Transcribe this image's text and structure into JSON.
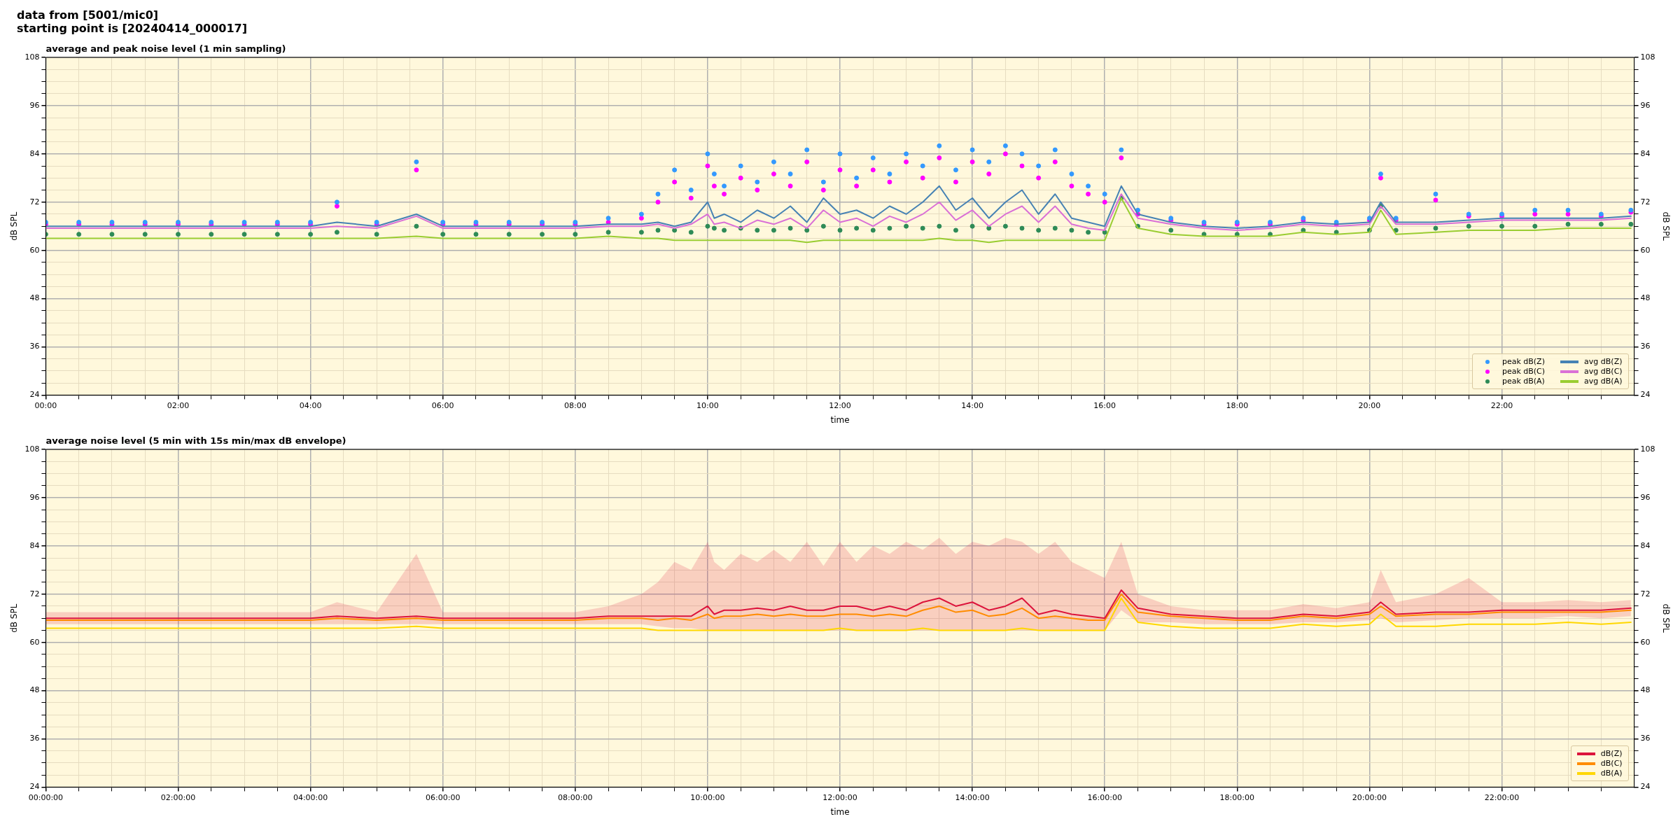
{
  "chart_data": [
    {
      "type": "line",
      "title": "average and peak noise level (1 min sampling)",
      "annotations": [
        "data from [5001/mic0]",
        "starting point is [20240414_000017]"
      ],
      "xlabel": "time",
      "ylabel": "dB SPL",
      "y2label": "dB SPL",
      "x": [
        0,
        0.5,
        1,
        1.5,
        2,
        2.5,
        3,
        3.5,
        4,
        4.4,
        5,
        5.6,
        6,
        6.5,
        7,
        7.5,
        8,
        8.5,
        9,
        9.25,
        9.5,
        9.75,
        10,
        10.1,
        10.25,
        10.5,
        10.75,
        11,
        11.25,
        11.5,
        11.75,
        12,
        12.25,
        12.5,
        12.75,
        13,
        13.25,
        13.5,
        13.75,
        14,
        14.25,
        14.5,
        14.75,
        15,
        15.25,
        15.5,
        15.75,
        16,
        16.25,
        16.5,
        17,
        17.5,
        18,
        18.5,
        19,
        19.5,
        20,
        20.17,
        20.4,
        21,
        21.5,
        22,
        22.5,
        23,
        23.5,
        23.95
      ],
      "xlim": [
        0,
        24
      ],
      "xticks": [
        {
          "value": 0,
          "label": "00:00"
        },
        {
          "value": 0.5,
          "label": null
        },
        {
          "value": 1,
          "label": null
        },
        {
          "value": 1.5,
          "label": null
        },
        {
          "value": 2,
          "label": "02:00"
        },
        {
          "value": 2.5,
          "label": null
        },
        {
          "value": 3,
          "label": null
        },
        {
          "value": 3.5,
          "label": null
        },
        {
          "value": 4,
          "label": "04:00"
        },
        {
          "value": 4.5,
          "label": null
        },
        {
          "value": 5,
          "label": null
        },
        {
          "value": 5.5,
          "label": null
        },
        {
          "value": 6,
          "label": "06:00"
        },
        {
          "value": 6.5,
          "label": null
        },
        {
          "value": 7,
          "label": null
        },
        {
          "value": 7.5,
          "label": null
        },
        {
          "value": 8,
          "label": "08:00"
        },
        {
          "value": 8.5,
          "label": null
        },
        {
          "value": 9,
          "label": null
        },
        {
          "value": 9.5,
          "label": null
        },
        {
          "value": 10,
          "label": "10:00"
        },
        {
          "value": 10.5,
          "label": null
        },
        {
          "value": 11,
          "label": null
        },
        {
          "value": 11.5,
          "label": null
        },
        {
          "value": 12,
          "label": "12:00"
        },
        {
          "value": 12.5,
          "label": null
        },
        {
          "value": 13,
          "label": null
        },
        {
          "value": 13.5,
          "label": null
        },
        {
          "value": 14,
          "label": "14:00"
        },
        {
          "value": 14.5,
          "label": null
        },
        {
          "value": 15,
          "label": null
        },
        {
          "value": 15.5,
          "label": null
        },
        {
          "value": 16,
          "label": "16:00"
        },
        {
          "value": 16.5,
          "label": null
        },
        {
          "value": 17,
          "label": null
        },
        {
          "value": 17.5,
          "label": null
        },
        {
          "value": 18,
          "label": "18:00"
        },
        {
          "value": 18.5,
          "label": null
        },
        {
          "value": 19,
          "label": null
        },
        {
          "value": 19.5,
          "label": null
        },
        {
          "value": 20,
          "label": "20:00"
        },
        {
          "value": 20.5,
          "label": null
        },
        {
          "value": 21,
          "label": null
        },
        {
          "value": 21.5,
          "label": null
        },
        {
          "value": 22,
          "label": "22:00"
        },
        {
          "value": 22.5,
          "label": null
        },
        {
          "value": 23,
          "label": null
        },
        {
          "value": 23.5,
          "label": null
        }
      ],
      "ylim": [
        24,
        108
      ],
      "yticks": [
        24,
        {
          "value": 27,
          "label": null
        },
        {
          "value": 30,
          "label": null
        },
        {
          "value": 33,
          "label": null
        },
        36,
        {
          "value": 39,
          "label": null
        },
        {
          "value": 42,
          "label": null
        },
        {
          "value": 45,
          "label": null
        },
        48,
        {
          "value": 51,
          "label": null
        },
        {
          "value": 54,
          "label": null
        },
        {
          "value": 57,
          "label": null
        },
        60,
        {
          "value": 63,
          "label": null
        },
        {
          "value": 66,
          "label": null
        },
        {
          "value": 69,
          "label": null
        },
        72,
        {
          "value": 75,
          "label": null
        },
        {
          "value": 78,
          "label": null
        },
        {
          "value": 81,
          "label": null
        },
        84,
        {
          "value": 87,
          "label": null
        },
        {
          "value": 90,
          "label": null
        },
        {
          "value": 93,
          "label": null
        },
        96,
        {
          "value": 99,
          "label": null
        },
        {
          "value": 102,
          "label": null
        },
        {
          "value": 105,
          "label": null
        },
        108
      ],
      "y2lim": [
        24,
        108
      ],
      "y2ticks": [
        24,
        {
          "value": 27,
          "label": null
        },
        {
          "value": 30,
          "label": null
        },
        {
          "value": 33,
          "label": null
        },
        36,
        {
          "value": 39,
          "label": null
        },
        {
          "value": 42,
          "label": null
        },
        {
          "value": 45,
          "label": null
        },
        48,
        {
          "value": 51,
          "label": null
        },
        {
          "value": 54,
          "label": null
        },
        {
          "value": 57,
          "label": null
        },
        60,
        {
          "value": 63,
          "label": null
        },
        {
          "value": 66,
          "label": null
        },
        {
          "value": 69,
          "label": null
        },
        72,
        {
          "value": 75,
          "label": null
        },
        {
          "value": 78,
          "label": null
        },
        {
          "value": 81,
          "label": null
        },
        84,
        {
          "value": 87,
          "label": null
        },
        {
          "value": 90,
          "label": null
        },
        {
          "value": 93,
          "label": null
        },
        96,
        {
          "value": 99,
          "label": null
        },
        {
          "value": 102,
          "label": null
        },
        {
          "value": 105,
          "label": null
        },
        108
      ],
      "grid": true,
      "legend": "bottom right",
      "series": [
        {
          "name": "peak dB(Z)",
          "type": "scatter",
          "marker": "circle",
          "color": "#3399ff",
          "values": [
            67,
            67,
            67,
            67,
            67,
            67,
            67,
            67,
            67,
            72,
            67,
            82,
            67,
            67,
            67,
            67,
            67,
            68,
            69,
            74,
            80,
            75,
            84,
            79,
            76,
            81,
            77,
            82,
            79,
            85,
            77,
            84,
            78,
            83,
            79,
            84,
            81,
            86,
            80,
            85,
            82,
            86,
            84,
            81,
            85,
            79,
            76,
            74,
            85,
            70,
            68,
            67,
            67,
            67,
            68,
            67,
            68,
            79,
            68,
            74,
            69,
            69,
            70,
            70,
            69,
            70
          ]
        },
        {
          "name": "peak dB(C)",
          "type": "scatter",
          "marker": "circle",
          "color": "#ff00ff",
          "values": [
            66.5,
            66.5,
            66.5,
            66.5,
            66.5,
            66.5,
            66.5,
            66.5,
            66.5,
            71,
            66.5,
            80,
            66.5,
            66.5,
            66.5,
            66.5,
            66.5,
            67,
            68,
            72,
            77,
            73,
            81,
            76,
            74,
            78,
            75,
            79,
            76,
            82,
            75,
            80,
            76,
            80,
            77,
            82,
            78,
            83,
            77,
            82,
            79,
            84,
            81,
            78,
            82,
            76,
            74,
            72,
            83,
            69,
            67.5,
            66.5,
            66.5,
            66.5,
            67.5,
            66.5,
            67.5,
            78,
            67.5,
            72.5,
            68.5,
            68.5,
            69,
            69,
            68.5,
            69.5
          ]
        },
        {
          "name": "peak dB(A)",
          "type": "scatter",
          "marker": "circle",
          "color": "#2e8b57",
          "values": [
            64,
            64,
            64,
            64,
            64,
            64,
            64,
            64,
            64,
            64.5,
            64,
            66,
            64,
            64,
            64,
            64,
            64,
            64.5,
            64.5,
            65,
            65,
            64.5,
            66,
            65.5,
            65,
            65.5,
            65,
            65,
            65.5,
            65,
            66,
            65,
            65.5,
            65,
            65.5,
            66,
            65.5,
            66,
            65,
            66,
            65.5,
            66,
            65.5,
            65,
            65.5,
            65,
            64.5,
            64.5,
            73,
            66,
            65,
            64,
            64,
            64,
            65,
            64.5,
            65,
            71,
            65,
            65.5,
            66,
            66,
            66,
            66.5,
            66.5,
            66.5
          ]
        },
        {
          "name": "avg dB(Z)",
          "type": "line",
          "color": "#4682b4",
          "values": [
            66,
            66,
            66,
            66,
            66,
            66,
            66,
            66,
            66,
            67,
            66,
            69,
            66,
            66,
            66,
            66,
            66,
            66.5,
            66.5,
            67,
            66,
            67,
            72,
            68,
            69,
            67,
            70,
            68,
            71,
            67,
            73,
            69,
            70,
            68,
            71,
            69,
            72,
            76,
            70,
            73,
            68,
            72,
            75,
            69,
            74,
            68,
            67,
            66,
            76,
            69,
            67,
            66,
            65.5,
            66,
            67,
            66.5,
            67,
            72,
            67,
            67,
            67.5,
            68,
            68,
            68,
            68,
            68.5
          ]
        },
        {
          "name": "avg dB(C)",
          "type": "line",
          "color": "#da70d6",
          "values": [
            65.5,
            65.5,
            65.5,
            65.5,
            65.5,
            65.5,
            65.5,
            65.5,
            65.5,
            66,
            65.5,
            68.5,
            65.5,
            65.5,
            65.5,
            65.5,
            65.5,
            66,
            66,
            66.5,
            65.5,
            66.5,
            69,
            66.5,
            67,
            65.5,
            67.5,
            66.5,
            68,
            65.5,
            70,
            67,
            68,
            66,
            68.5,
            67,
            69,
            72,
            67.5,
            70,
            66,
            69,
            71,
            67,
            71,
            66.5,
            65.5,
            65,
            74,
            68,
            66.5,
            65.5,
            65,
            65.5,
            66.5,
            66,
            66.5,
            71,
            66.5,
            66.5,
            67,
            67.5,
            67.5,
            67.5,
            67.5,
            68
          ]
        },
        {
          "name": "avg dB(A)",
          "type": "line",
          "color": "#9acd32",
          "values": [
            63,
            63,
            63,
            63,
            63,
            63,
            63,
            63,
            63,
            63,
            63,
            63.5,
            63,
            63,
            63,
            63,
            63,
            63.5,
            63,
            63,
            62.5,
            62.5,
            62.5,
            62.5,
            62.5,
            62.5,
            62.5,
            62.5,
            62.5,
            62,
            62.5,
            62.5,
            62.5,
            62.5,
            62.5,
            62.5,
            62.5,
            63,
            62.5,
            62.5,
            62,
            62.5,
            62.5,
            62.5,
            62.5,
            62.5,
            62.5,
            62.5,
            73,
            65.5,
            64,
            63.5,
            63.5,
            63.5,
            64.5,
            64,
            64.5,
            70,
            64,
            64.5,
            65,
            65,
            65,
            65.5,
            65.5,
            65.5
          ]
        }
      ]
    },
    {
      "type": "line",
      "title": "average noise level (5 min with 15s min/max dB envelope)",
      "xlabel": "time",
      "ylabel": "dB SPL",
      "y2label": "dB SPL",
      "x": [
        0,
        0.5,
        1,
        1.5,
        2,
        2.5,
        3,
        3.5,
        4,
        4.4,
        5,
        5.6,
        6,
        6.5,
        7,
        7.5,
        8,
        8.5,
        9,
        9.25,
        9.5,
        9.75,
        10,
        10.1,
        10.25,
        10.5,
        10.75,
        11,
        11.25,
        11.5,
        11.75,
        12,
        12.25,
        12.5,
        12.75,
        13,
        13.25,
        13.5,
        13.75,
        14,
        14.25,
        14.5,
        14.75,
        15,
        15.25,
        15.5,
        15.75,
        16,
        16.25,
        16.5,
        17,
        17.5,
        18,
        18.5,
        19,
        19.5,
        20,
        20.17,
        20.4,
        21,
        21.5,
        22,
        22.5,
        23,
        23.5,
        23.95
      ],
      "xlim": [
        0,
        24
      ],
      "xticks": [
        {
          "value": 0,
          "label": "00:00:00"
        },
        {
          "value": 0.5,
          "label": null
        },
        {
          "value": 1,
          "label": null
        },
        {
          "value": 1.5,
          "label": null
        },
        {
          "value": 2,
          "label": "02:00:00"
        },
        {
          "value": 2.5,
          "label": null
        },
        {
          "value": 3,
          "label": null
        },
        {
          "value": 3.5,
          "label": null
        },
        {
          "value": 4,
          "label": "04:00:00"
        },
        {
          "value": 4.5,
          "label": null
        },
        {
          "value": 5,
          "label": null
        },
        {
          "value": 5.5,
          "label": null
        },
        {
          "value": 6,
          "label": "06:00:00"
        },
        {
          "value": 6.5,
          "label": null
        },
        {
          "value": 7,
          "label": null
        },
        {
          "value": 7.5,
          "label": null
        },
        {
          "value": 8,
          "label": "08:00:00"
        },
        {
          "value": 8.5,
          "label": null
        },
        {
          "value": 9,
          "label": null
        },
        {
          "value": 9.5,
          "label": null
        },
        {
          "value": 10,
          "label": "10:00:00"
        },
        {
          "value": 10.5,
          "label": null
        },
        {
          "value": 11,
          "label": null
        },
        {
          "value": 11.5,
          "label": null
        },
        {
          "value": 12,
          "label": "12:00:00"
        },
        {
          "value": 12.5,
          "label": null
        },
        {
          "value": 13,
          "label": null
        },
        {
          "value": 13.5,
          "label": null
        },
        {
          "value": 14,
          "label": "14:00:00"
        },
        {
          "value": 14.5,
          "label": null
        },
        {
          "value": 15,
          "label": null
        },
        {
          "value": 15.5,
          "label": null
        },
        {
          "value": 16,
          "label": "16:00:00"
        },
        {
          "value": 16.5,
          "label": null
        },
        {
          "value": 17,
          "label": null
        },
        {
          "value": 17.5,
          "label": null
        },
        {
          "value": 18,
          "label": "18:00:00"
        },
        {
          "value": 18.5,
          "label": null
        },
        {
          "value": 19,
          "label": null
        },
        {
          "value": 19.5,
          "label": null
        },
        {
          "value": 20,
          "label": "20:00:00"
        },
        {
          "value": 20.5,
          "label": null
        },
        {
          "value": 21,
          "label": null
        },
        {
          "value": 21.5,
          "label": null
        },
        {
          "value": 22,
          "label": "22:00:00"
        },
        {
          "value": 22.5,
          "label": null
        },
        {
          "value": 23,
          "label": null
        },
        {
          "value": 23.5,
          "label": null
        }
      ],
      "ylim": [
        24,
        108
      ],
      "yticks": [
        24,
        {
          "value": 27,
          "label": null
        },
        {
          "value": 30,
          "label": null
        },
        {
          "value": 33,
          "label": null
        },
        36,
        {
          "value": 39,
          "label": null
        },
        {
          "value": 42,
          "label": null
        },
        {
          "value": 45,
          "label": null
        },
        48,
        {
          "value": 51,
          "label": null
        },
        {
          "value": 54,
          "label": null
        },
        {
          "value": 57,
          "label": null
        },
        60,
        {
          "value": 63,
          "label": null
        },
        {
          "value": 66,
          "label": null
        },
        {
          "value": 69,
          "label": null
        },
        72,
        {
          "value": 75,
          "label": null
        },
        {
          "value": 78,
          "label": null
        },
        {
          "value": 81,
          "label": null
        },
        84,
        {
          "value": 87,
          "label": null
        },
        {
          "value": 90,
          "label": null
        },
        {
          "value": 93,
          "label": null
        },
        96,
        {
          "value": 99,
          "label": null
        },
        {
          "value": 102,
          "label": null
        },
        {
          "value": 105,
          "label": null
        },
        108
      ],
      "y2lim": [
        24,
        108
      ],
      "y2ticks": [
        24,
        {
          "value": 27,
          "label": null
        },
        {
          "value": 30,
          "label": null
        },
        {
          "value": 33,
          "label": null
        },
        36,
        {
          "value": 39,
          "label": null
        },
        {
          "value": 42,
          "label": null
        },
        {
          "value": 45,
          "label": null
        },
        48,
        {
          "value": 51,
          "label": null
        },
        {
          "value": 54,
          "label": null
        },
        {
          "value": 57,
          "label": null
        },
        60,
        {
          "value": 63,
          "label": null
        },
        {
          "value": 66,
          "label": null
        },
        {
          "value": 69,
          "label": null
        },
        72,
        {
          "value": 75,
          "label": null
        },
        {
          "value": 78,
          "label": null
        },
        {
          "value": 81,
          "label": null
        },
        84,
        {
          "value": 87,
          "label": null
        },
        {
          "value": 90,
          "label": null
        },
        {
          "value": 93,
          "label": null
        },
        96,
        {
          "value": 99,
          "label": null
        },
        {
          "value": 102,
          "label": null
        },
        {
          "value": 105,
          "label": null
        },
        108
      ],
      "grid": true,
      "legend": "bottom right",
      "series": [
        {
          "name": "dB(Z)",
          "color": "#dc143c",
          "values": [
            66,
            66,
            66,
            66,
            66,
            66,
            66,
            66,
            66,
            66.5,
            66,
            66.5,
            66,
            66,
            66,
            66,
            66,
            66.5,
            66.5,
            66.5,
            66.5,
            66.5,
            69,
            67,
            68,
            68,
            68.5,
            68,
            69,
            68,
            68,
            69,
            69,
            68,
            69,
            68,
            70,
            71,
            69,
            70,
            68,
            69,
            71,
            67,
            68,
            67,
            66.5,
            66,
            73,
            68.5,
            67,
            66.5,
            66,
            66,
            67,
            66.5,
            67.5,
            70,
            67,
            67.5,
            67.5,
            68,
            68,
            68,
            68,
            68.5
          ],
          "lower": [
            64.5,
            64.5,
            64.5,
            64.5,
            64.5,
            64.5,
            64.5,
            64.5,
            64.5,
            64.5,
            64.5,
            64.5,
            64.5,
            64.5,
            64.5,
            64.5,
            64.5,
            64.5,
            64.5,
            64,
            63.5,
            63.5,
            63,
            63,
            63,
            63,
            63,
            63,
            63,
            63,
            63,
            63,
            63,
            63,
            63,
            63,
            63,
            63,
            63,
            63,
            63,
            63,
            63,
            63,
            63,
            63,
            63,
            63,
            68,
            65,
            65,
            64.5,
            64.5,
            64.5,
            65,
            65,
            65.5,
            66,
            65,
            65.5,
            66,
            66,
            66,
            66.5,
            66,
            66.5
          ],
          "upper": [
            67.5,
            67.5,
            67.5,
            67.5,
            67.5,
            67.5,
            67.5,
            67.5,
            67.5,
            70,
            67.5,
            82,
            67.5,
            67.5,
            67.5,
            67.5,
            67.5,
            69,
            72,
            75,
            80,
            78,
            85,
            80,
            78,
            82,
            80,
            83,
            80,
            85,
            79,
            85,
            80,
            84,
            82,
            85,
            83,
            86,
            82,
            85,
            84,
            86,
            85,
            82,
            85,
            80,
            78,
            76,
            85,
            72,
            69,
            68,
            68,
            68,
            69.5,
            68.5,
            70,
            78,
            70,
            72,
            76,
            70,
            70,
            70.5,
            70,
            70.5
          ]
        },
        {
          "name": "dB(C)",
          "color": "#ff8c00",
          "values": [
            65.5,
            65.5,
            65.5,
            65.5,
            65.5,
            65.5,
            65.5,
            65.5,
            65.5,
            66,
            65.5,
            66,
            65.5,
            65.5,
            65.5,
            65.5,
            65.5,
            66,
            66,
            65.5,
            66,
            65.5,
            67,
            66,
            66.5,
            66.5,
            67,
            66.5,
            67,
            66.5,
            66.5,
            67,
            67,
            66.5,
            67,
            66.5,
            68,
            69,
            67.5,
            68,
            66.5,
            67,
            68.5,
            66,
            66.5,
            66,
            65.5,
            65.5,
            72,
            67.5,
            66.5,
            66,
            65.5,
            65.5,
            66.5,
            66,
            67,
            69,
            66.5,
            67,
            67,
            67.5,
            67.5,
            67.5,
            67.5,
            68
          ]
        },
        {
          "name": "dB(A)",
          "color": "#ffd700",
          "values": [
            63.5,
            63.5,
            63.5,
            63.5,
            63.5,
            63.5,
            63.5,
            63.5,
            63.5,
            63.5,
            63.5,
            64,
            63.5,
            63.5,
            63.5,
            63.5,
            63.5,
            63.5,
            63.5,
            63,
            63,
            63,
            63,
            63,
            63,
            63,
            63,
            63,
            63,
            63,
            63,
            63.5,
            63,
            63,
            63,
            63,
            63.5,
            63,
            63,
            63,
            63,
            63,
            63.5,
            63,
            63,
            63,
            63,
            63,
            71,
            65,
            64,
            63.5,
            63.5,
            63.5,
            64.5,
            64,
            64.5,
            67,
            64,
            64,
            64.5,
            64.5,
            64.5,
            65,
            64.5,
            65
          ]
        }
      ]
    }
  ]
}
